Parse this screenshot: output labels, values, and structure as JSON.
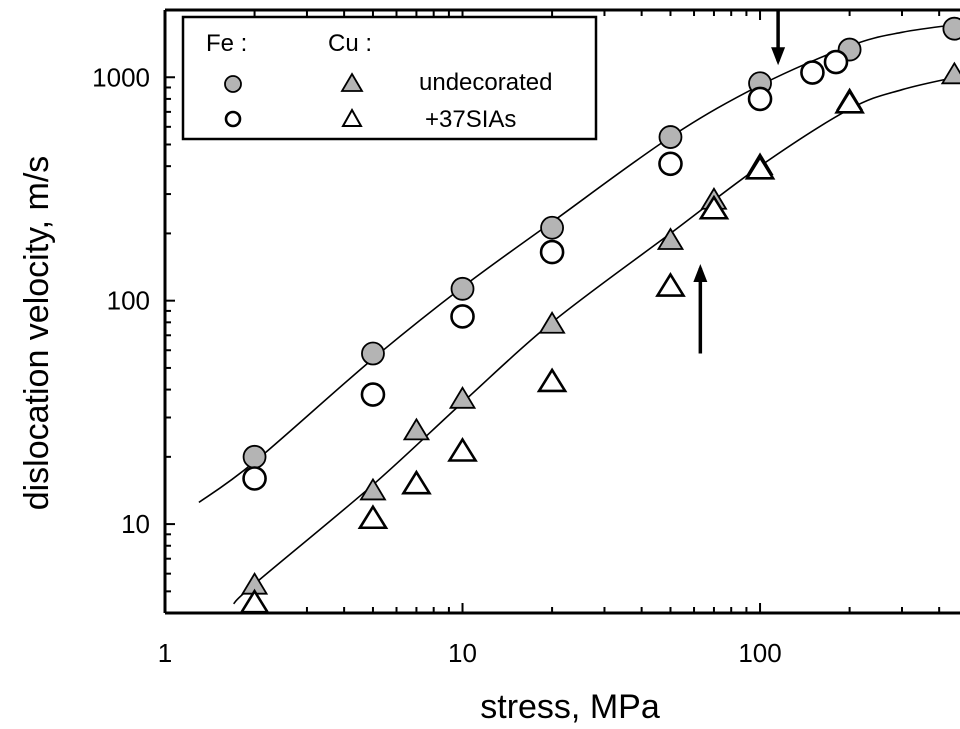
{
  "chart_data": {
    "type": "scatter",
    "xlabel": "stress, MPa",
    "ylabel": "dislocation velocity, m/s",
    "xscale": "log",
    "yscale": "log",
    "xlim": [
      1,
      470
    ],
    "ylim": [
      4,
      2000
    ],
    "xticks": [
      {
        "value": 1,
        "label": "1"
      },
      {
        "value": 10,
        "label": "10"
      },
      {
        "value": 100,
        "label": "100"
      }
    ],
    "yticks": [
      {
        "value": 10,
        "label": "10"
      },
      {
        "value": 100,
        "label": "100"
      },
      {
        "value": 1000,
        "label": "1000"
      }
    ],
    "legend": {
      "placement": "top-left",
      "col_headers": [
        "Fe :",
        "Cu :"
      ],
      "rows": [
        {
          "label": "undecorated",
          "fe_marker": "filled-circle",
          "cu_marker": "filled-triangle"
        },
        {
          "label": "+37SIAs",
          "fe_marker": "open-circle",
          "cu_marker": "open-triangle"
        }
      ]
    },
    "series": [
      {
        "name": "Fe undecorated",
        "marker": "filled-circle",
        "points": [
          [
            2,
            20
          ],
          [
            5,
            58
          ],
          [
            10,
            113
          ],
          [
            20,
            212
          ],
          [
            50,
            540
          ],
          [
            100,
            940
          ],
          [
            200,
            1330
          ],
          [
            450,
            1650
          ]
        ]
      },
      {
        "name": "Fe +37SIAs",
        "marker": "open-circle",
        "points": [
          [
            2,
            16
          ],
          [
            5,
            38
          ],
          [
            10,
            85
          ],
          [
            20,
            165
          ],
          [
            50,
            410
          ],
          [
            100,
            800
          ],
          [
            150,
            1050
          ],
          [
            180,
            1170
          ]
        ]
      },
      {
        "name": "Cu undecorated",
        "marker": "filled-triangle",
        "points": [
          [
            2,
            5.3
          ],
          [
            5,
            14
          ],
          [
            7,
            26
          ],
          [
            10,
            36
          ],
          [
            20,
            78
          ],
          [
            50,
            185
          ],
          [
            70,
            280
          ],
          [
            100,
            400
          ],
          [
            200,
            780
          ],
          [
            450,
            1020
          ]
        ]
      },
      {
        "name": "Cu +37SIAs",
        "marker": "open-triangle",
        "points": [
          [
            2,
            4.4
          ],
          [
            5,
            10.5
          ],
          [
            7,
            15
          ],
          [
            10,
            21
          ],
          [
            20,
            43
          ],
          [
            50,
            115
          ],
          [
            70,
            255
          ],
          [
            100,
            385
          ],
          [
            200,
            760
          ]
        ]
      }
    ],
    "fit_curves": [
      {
        "points": [
          [
            1.3,
            12.5
          ],
          [
            2,
            19
          ],
          [
            5,
            55
          ],
          [
            10,
            115
          ],
          [
            20,
            225
          ],
          [
            50,
            540
          ],
          [
            100,
            920
          ],
          [
            200,
            1380
          ],
          [
            300,
            1590
          ],
          [
            470,
            1730
          ]
        ]
      },
      {
        "points": [
          [
            1.7,
            4.4
          ],
          [
            2,
            5.4
          ],
          [
            5,
            15
          ],
          [
            10,
            35
          ],
          [
            20,
            80
          ],
          [
            50,
            200
          ],
          [
            100,
            400
          ],
          [
            200,
            720
          ],
          [
            300,
            880
          ],
          [
            470,
            1010
          ]
        ]
      }
    ],
    "annotations": [
      {
        "type": "arrow",
        "direction": "down",
        "x": 115,
        "y_from": 2000,
        "y_to": 1180
      },
      {
        "type": "arrow",
        "direction": "up",
        "x": 63,
        "y_from": 58,
        "y_to": 140
      }
    ]
  }
}
